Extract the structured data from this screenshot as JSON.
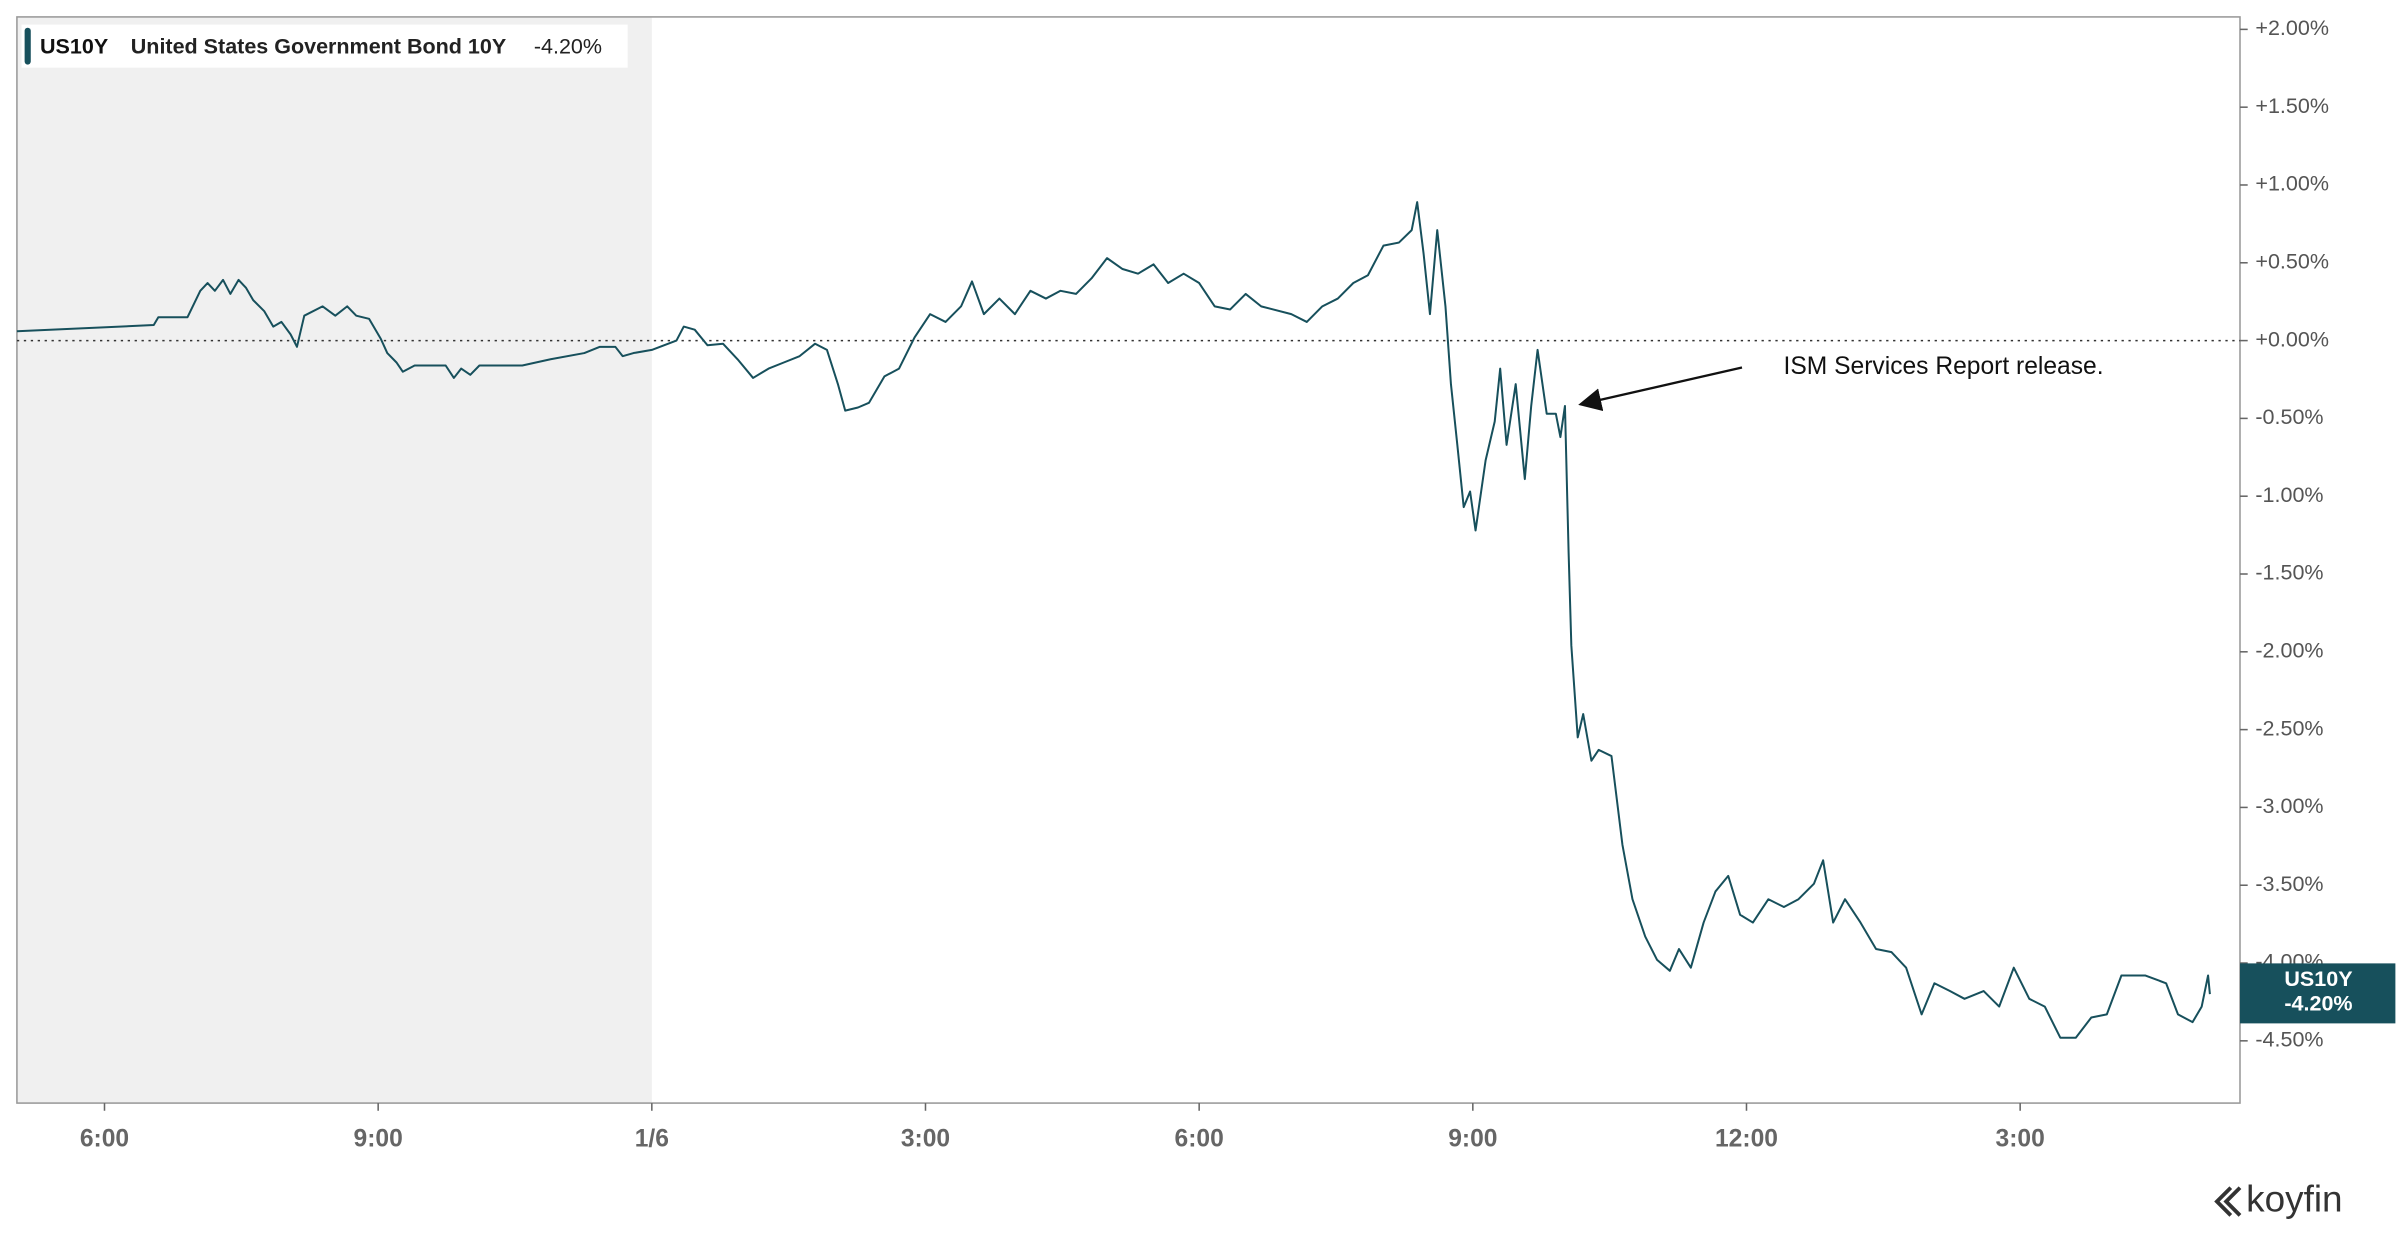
{
  "chart_data": {
    "type": "line",
    "series": [
      {
        "name": "US10Y",
        "description": "United States Government Bond 10Y",
        "last_value_label": "-4.20%",
        "color": "#17505c",
        "values": [
          0.06,
          0.1,
          0.15,
          0.15,
          0.32,
          0.37,
          0.32,
          0.39,
          0.3,
          0.39,
          0.34,
          0.26,
          0.19,
          0.09,
          0.12,
          0.04,
          -0.04,
          0.16,
          0.22,
          0.16,
          0.22,
          0.16,
          0.14,
          0.01,
          -0.08,
          -0.14,
          -0.2,
          -0.16,
          -0.16,
          -0.24,
          -0.18,
          -0.22,
          -0.16,
          -0.16,
          -0.12,
          -0.08,
          -0.04,
          -0.04,
          -0.1,
          -0.08,
          -0.06,
          0.0,
          0.09,
          0.07,
          -0.03,
          -0.02,
          -0.12,
          -0.24,
          -0.18,
          -0.14,
          -0.1,
          -0.02,
          -0.06,
          -0.28,
          -0.45,
          -0.43,
          -0.4,
          -0.23,
          -0.18,
          0.02,
          0.17,
          0.12,
          0.22,
          0.38,
          0.17,
          0.27,
          0.17,
          0.32,
          0.27,
          0.32,
          0.3,
          0.4,
          0.53,
          0.46,
          0.43,
          0.49,
          0.37,
          0.43,
          0.37,
          0.22,
          0.2,
          0.3,
          0.22,
          0.17,
          0.12,
          0.22,
          0.27,
          0.37,
          0.42,
          0.61,
          0.63,
          0.71,
          0.89,
          0.56,
          0.17,
          0.71,
          0.22,
          -0.28,
          -0.67,
          -1.07,
          -0.97,
          -1.22,
          -0.77,
          -0.52,
          -0.18,
          -0.67,
          -0.28,
          -0.89,
          -0.42,
          -0.06,
          -0.47,
          -0.47,
          -0.62,
          -0.42,
          -1.36,
          -1.96,
          -2.55,
          -2.4,
          -2.7,
          -2.63,
          -2.67,
          -3.24,
          -3.59,
          -3.83,
          -3.98,
          -4.05,
          -3.91,
          -4.03,
          -3.74,
          -3.54,
          -3.44,
          -3.69,
          -3.74,
          -3.59,
          -3.64,
          -3.59,
          -3.49,
          -3.34,
          -3.74,
          -3.59,
          -3.74,
          -3.91,
          -3.93,
          -4.03,
          -4.33,
          -4.13,
          -4.18,
          -4.23,
          -4.18,
          -4.28,
          -4.03,
          -4.23,
          -4.28,
          -4.48,
          -4.48,
          -4.35,
          -4.33,
          -4.08,
          -4.08,
          -4.13,
          -4.33,
          -4.38,
          -4.28,
          -4.08,
          -4.2
        ]
      }
    ],
    "x": [
      5.04,
      6.54,
      6.59,
      6.91,
      7.05,
      7.13,
      7.21,
      7.3,
      7.38,
      7.47,
      7.55,
      7.63,
      7.75,
      7.85,
      7.94,
      8.04,
      8.11,
      8.19,
      8.39,
      8.53,
      8.66,
      8.76,
      8.9,
      9.03,
      9.1,
      9.2,
      9.27,
      9.4,
      9.74,
      9.83,
      9.91,
      10.01,
      10.11,
      10.58,
      10.89,
      11.26,
      11.43,
      11.6,
      11.68,
      11.8,
      12.0,
      12.27,
      12.35,
      12.47,
      12.61,
      12.78,
      12.94,
      13.11,
      13.28,
      13.45,
      13.62,
      13.79,
      13.92,
      14.04,
      14.12,
      14.26,
      14.38,
      14.55,
      14.71,
      14.88,
      15.05,
      15.22,
      15.39,
      15.51,
      15.64,
      15.81,
      15.98,
      16.15,
      16.32,
      16.48,
      16.65,
      16.82,
      16.99,
      17.16,
      17.33,
      17.5,
      17.66,
      17.83,
      18.0,
      18.17,
      18.34,
      18.51,
      18.68,
      19.01,
      19.18,
      19.35,
      19.52,
      19.69,
      19.85,
      20.02,
      20.19,
      20.33,
      20.39,
      20.46,
      20.53,
      20.61,
      20.7,
      20.76,
      20.83,
      20.9,
      20.97,
      21.03,
      21.14,
      21.24,
      21.3,
      21.37,
      21.47,
      21.57,
      21.64,
      21.71,
      21.81,
      21.91,
      21.96,
      22.01,
      22.05,
      22.08,
      22.15,
      22.21,
      22.3,
      22.38,
      22.52,
      22.64,
      22.75,
      22.89,
      23.02,
      23.16,
      23.26,
      23.39,
      23.53,
      23.66,
      23.8,
      23.93,
      24.07,
      24.24,
      24.41,
      24.57,
      24.74,
      24.84,
      24.95,
      25.08,
      25.25,
      25.42,
      25.59,
      25.75,
      25.92,
      26.06,
      26.23,
      26.39,
      26.6,
      26.77,
      26.93,
      27.1,
      27.27,
      27.44,
      27.61,
      27.78,
      27.95,
      28.11,
      28.37,
      28.6,
      28.73,
      28.89,
      28.99,
      29.06,
      29.08
    ],
    "xlim": [
      5.04,
      29.41
    ],
    "xticks": [
      {
        "value": 6,
        "label": "6:00"
      },
      {
        "value": 9,
        "label": "9:00"
      },
      {
        "value": 12,
        "label": "1/6"
      },
      {
        "value": 15,
        "label": "3:00"
      },
      {
        "value": 18,
        "label": "6:00"
      },
      {
        "value": 21,
        "label": "9:00"
      },
      {
        "value": 24,
        "label": "12:00"
      },
      {
        "value": 27,
        "label": "3:00"
      }
    ],
    "ylim": [
      -4.9,
      2.08
    ],
    "yticks": [
      {
        "value": 2,
        "label": "+2.00%"
      },
      {
        "value": 1.5,
        "label": "+1.50%"
      },
      {
        "value": 1,
        "label": "+1.00%"
      },
      {
        "value": 0.5,
        "label": "+0.50%"
      },
      {
        "value": 0,
        "label": "+0.00%"
      },
      {
        "value": -0.5,
        "label": "-0.50%"
      },
      {
        "value": -1,
        "label": "-1.00%"
      },
      {
        "value": -1.5,
        "label": "-1.50%"
      },
      {
        "value": -2,
        "label": "-2.00%"
      },
      {
        "value": -2.5,
        "label": "-2.50%"
      },
      {
        "value": -3,
        "label": "-3.00%"
      },
      {
        "value": -3.5,
        "label": "-3.50%"
      },
      {
        "value": -4,
        "label": "-4.00%"
      },
      {
        "value": -4.5,
        "label": "-4.50%"
      }
    ],
    "shaded_xrange": [
      5.04,
      12
    ],
    "zero_line": true,
    "annotation": {
      "text": "ISM Services Report release.",
      "x": 22.18,
      "y": -0.41
    },
    "brand": "koyfin"
  }
}
